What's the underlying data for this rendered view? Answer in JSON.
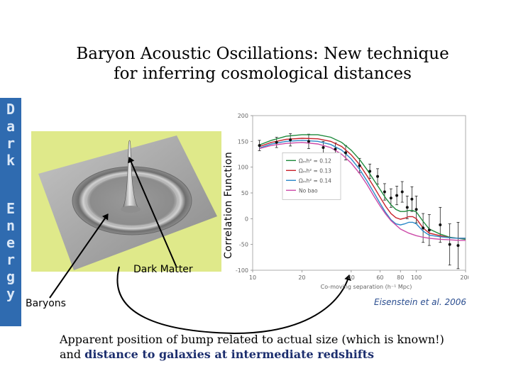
{
  "sidebar": {
    "letters": [
      "D",
      "a",
      "r",
      "k",
      "",
      "E",
      "n",
      "e",
      "r",
      "g",
      "y"
    ]
  },
  "title": {
    "line1": "Baryon Acoustic Oscillations: New technique",
    "line2": "for inferring cosmological distances"
  },
  "surface_plot": {
    "peak_label": "Dark Matter",
    "ring_label": "Baryons"
  },
  "chart_data": {
    "type": "line",
    "title": "",
    "xlabel": "Co-moving separation (h⁻¹ Mpc)",
    "ylabel": "Correlation Function",
    "xscale": "log",
    "xlim": [
      10,
      200
    ],
    "ylim": [
      -100,
      200
    ],
    "xticks": [
      10,
      20,
      40,
      60,
      80,
      100,
      200
    ],
    "yticks": [
      -100,
      -50,
      0,
      50,
      100,
      150,
      200
    ],
    "legend_position": "center-left",
    "series": [
      {
        "name": "Ωₘh² = 0.12",
        "color": "#1e8a3c",
        "x": [
          11,
          13,
          16,
          20,
          25,
          30,
          35,
          40,
          45,
          50,
          55,
          60,
          65,
          70,
          75,
          80,
          85,
          90,
          95,
          100,
          110,
          120,
          140,
          160,
          180,
          200
        ],
        "y": [
          143,
          152,
          160,
          163,
          163,
          158,
          148,
          133,
          115,
          95,
          75,
          57,
          40,
          27,
          18,
          14,
          14,
          16,
          16,
          13,
          -5,
          -20,
          -30,
          -36,
          -38,
          -40
        ]
      },
      {
        "name": "Ωₘh² = 0.13",
        "color": "#c8202a",
        "x": [
          11,
          13,
          16,
          20,
          25,
          30,
          35,
          40,
          45,
          50,
          55,
          60,
          65,
          70,
          75,
          80,
          85,
          90,
          95,
          100,
          110,
          120,
          140,
          160,
          180,
          200
        ],
        "y": [
          140,
          148,
          154,
          156,
          155,
          150,
          140,
          124,
          105,
          83,
          62,
          42,
          24,
          10,
          2,
          -1,
          1,
          4,
          4,
          0,
          -18,
          -28,
          -33,
          -37,
          -38,
          -38
        ]
      },
      {
        "name": "Ωₘh² = 0.14",
        "color": "#2b88c8",
        "x": [
          11,
          13,
          16,
          20,
          25,
          30,
          35,
          40,
          45,
          50,
          55,
          60,
          65,
          70,
          75,
          80,
          85,
          90,
          95,
          100,
          110,
          120,
          140,
          160,
          180,
          200
        ],
        "y": [
          137,
          145,
          150,
          152,
          150,
          144,
          133,
          116,
          96,
          73,
          51,
          30,
          12,
          -2,
          -10,
          -12,
          -10,
          -7,
          -7,
          -10,
          -24,
          -32,
          -35,
          -37,
          -38,
          -38
        ]
      },
      {
        "name": "No bao",
        "color": "#cc4aa8",
        "x": [
          11,
          13,
          16,
          20,
          25,
          30,
          35,
          40,
          45,
          50,
          55,
          60,
          65,
          70,
          80,
          90,
          100,
          110,
          120,
          140,
          160,
          180,
          200
        ],
        "y": [
          136,
          142,
          146,
          148,
          145,
          138,
          125,
          108,
          88,
          66,
          44,
          25,
          9,
          -4,
          -20,
          -28,
          -33,
          -36,
          -38,
          -40,
          -41,
          -42,
          -42
        ]
      }
    ],
    "observed": {
      "x": [
        11,
        14,
        17,
        22,
        27,
        32,
        37,
        45,
        52,
        58,
        64,
        70,
        76,
        82,
        88,
        94,
        100,
        110,
        120,
        140,
        160,
        180
      ],
      "y": [
        142,
        148,
        153,
        150,
        138,
        135,
        128,
        103,
        92,
        82,
        52,
        40,
        45,
        52,
        22,
        38,
        18,
        -18,
        -22,
        -12,
        -50,
        -52
      ],
      "err": [
        10,
        10,
        12,
        14,
        12,
        12,
        14,
        14,
        14,
        15,
        16,
        18,
        18,
        20,
        22,
        24,
        26,
        28,
        30,
        34,
        40,
        45
      ]
    }
  },
  "arrow": {
    "source_label": "Baryons"
  },
  "citation": "Eisenstein et al. 2006",
  "caption": {
    "part1": "Apparent position of bump related to actual size (which is known!) and ",
    "part2": "distance to galaxies at intermediate redshifts"
  }
}
